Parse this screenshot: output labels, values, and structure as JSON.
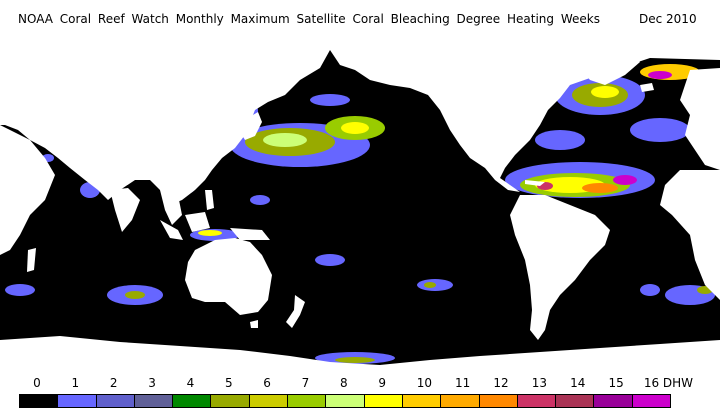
{
  "header": {
    "title": "NOAA Coral Reef Watch Monthly Maximum Satellite Coral Bleaching Degree Heating Weeks",
    "date": "Dec 2010"
  },
  "map": {
    "ocean_color": "#000000",
    "land_color": "#ffffff"
  },
  "legend": {
    "labels": [
      "0",
      "1",
      "2",
      "3",
      "4",
      "5",
      "6",
      "7",
      "8",
      "9",
      "10",
      "11",
      "12",
      "13",
      "14",
      "15",
      "16 DHW"
    ],
    "colors": [
      "#000000",
      "#6666ff",
      "#6060cc",
      "#606098",
      "#008800",
      "#98aa00",
      "#cccc00",
      "#99cc00",
      "#ccff77",
      "#ffff00",
      "#ffcc00",
      "#ffaa00",
      "#ff8800",
      "#cc3366",
      "#aa3355",
      "#990099",
      "#cc00cc"
    ]
  }
}
